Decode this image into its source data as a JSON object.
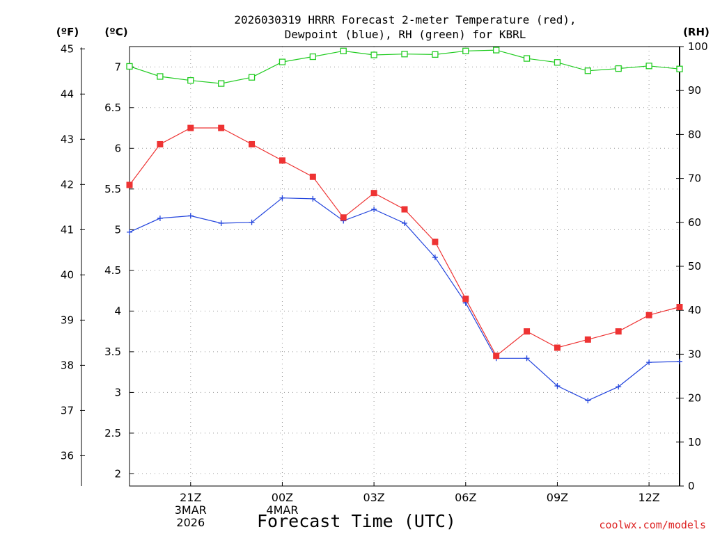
{
  "colors": {
    "temperature": "#ee3333",
    "dewpoint": "#2244dd",
    "rh": "#22cc22",
    "credit": "#dd2222",
    "grid": "#999999"
  },
  "chart_data": {
    "type": "line",
    "title_line1": "2026030319 HRRR Forecast 2-meter Temperature (red),",
    "title_line2": "Dewpoint (blue), RH (green) for KBRL",
    "xlabel": "Forecast Time (UTC)",
    "unit_left_outer": "(ºF)",
    "unit_left_inner": "(ºC)",
    "unit_right": "(RH)",
    "credit": "coolwx.com/models",
    "x_hours_utc": [
      "2026-03-03T19Z",
      "2026-03-03T20Z",
      "2026-03-03T21Z",
      "2026-03-03T22Z",
      "2026-03-03T23Z",
      "2026-03-04T00Z",
      "2026-03-04T01Z",
      "2026-03-04T02Z",
      "2026-03-04T03Z",
      "2026-03-04T04Z",
      "2026-03-04T05Z",
      "2026-03-04T06Z",
      "2026-03-04T07Z",
      "2026-03-04T08Z",
      "2026-03-04T09Z",
      "2026-03-04T10Z",
      "2026-03-04T11Z",
      "2026-03-04T12Z",
      "2026-03-04T13Z"
    ],
    "x_ticks": [
      {
        "lines": [
          "21Z",
          "3MAR",
          "2026"
        ]
      },
      {
        "lines": [
          "00Z",
          "4MAR"
        ]
      },
      {
        "lines": [
          "03Z"
        ]
      },
      {
        "lines": [
          "06Z"
        ]
      },
      {
        "lines": [
          "09Z"
        ]
      },
      {
        "lines": [
          "12Z"
        ]
      }
    ],
    "celsius_axis": {
      "range": [
        1.85,
        7.25
      ],
      "ticks": [
        "2",
        "2.5",
        "3",
        "3.5",
        "4",
        "4.5",
        "5",
        "5.5",
        "6",
        "6.5",
        "7"
      ]
    },
    "fahrenheit_axis": {
      "ticks": [
        "36",
        "37",
        "38",
        "39",
        "40",
        "41",
        "42",
        "43",
        "44",
        "45"
      ]
    },
    "rh_axis": {
      "range": [
        0,
        100
      ],
      "ticks": [
        "0",
        "10",
        "20",
        "30",
        "40",
        "50",
        "60",
        "70",
        "80",
        "90",
        "100"
      ]
    },
    "grid": true,
    "series": [
      {
        "name": "Temperature",
        "unit": "°C",
        "marker": "filled-square",
        "values": [
          5.55,
          6.05,
          6.25,
          6.25,
          6.05,
          5.85,
          5.65,
          5.15,
          5.45,
          5.25,
          4.85,
          4.15,
          3.45,
          3.75,
          3.55,
          3.65,
          3.75,
          3.95,
          4.05
        ]
      },
      {
        "name": "Dewpoint",
        "unit": "°C",
        "marker": "plus",
        "values": [
          4.97,
          5.14,
          5.17,
          5.08,
          5.09,
          5.39,
          5.38,
          5.11,
          5.25,
          5.08,
          4.66,
          4.1,
          3.42,
          3.42,
          3.08,
          2.9,
          3.07,
          3.37,
          3.38
        ]
      },
      {
        "name": "RH",
        "unit": "%",
        "marker": "open-square",
        "values": [
          95.5,
          93.2,
          92.3,
          91.6,
          93.0,
          96.5,
          97.7,
          99.0,
          98.1,
          98.3,
          98.2,
          99.0,
          99.2,
          97.3,
          96.4,
          94.5,
          95.0,
          95.6,
          94.9
        ]
      }
    ]
  }
}
